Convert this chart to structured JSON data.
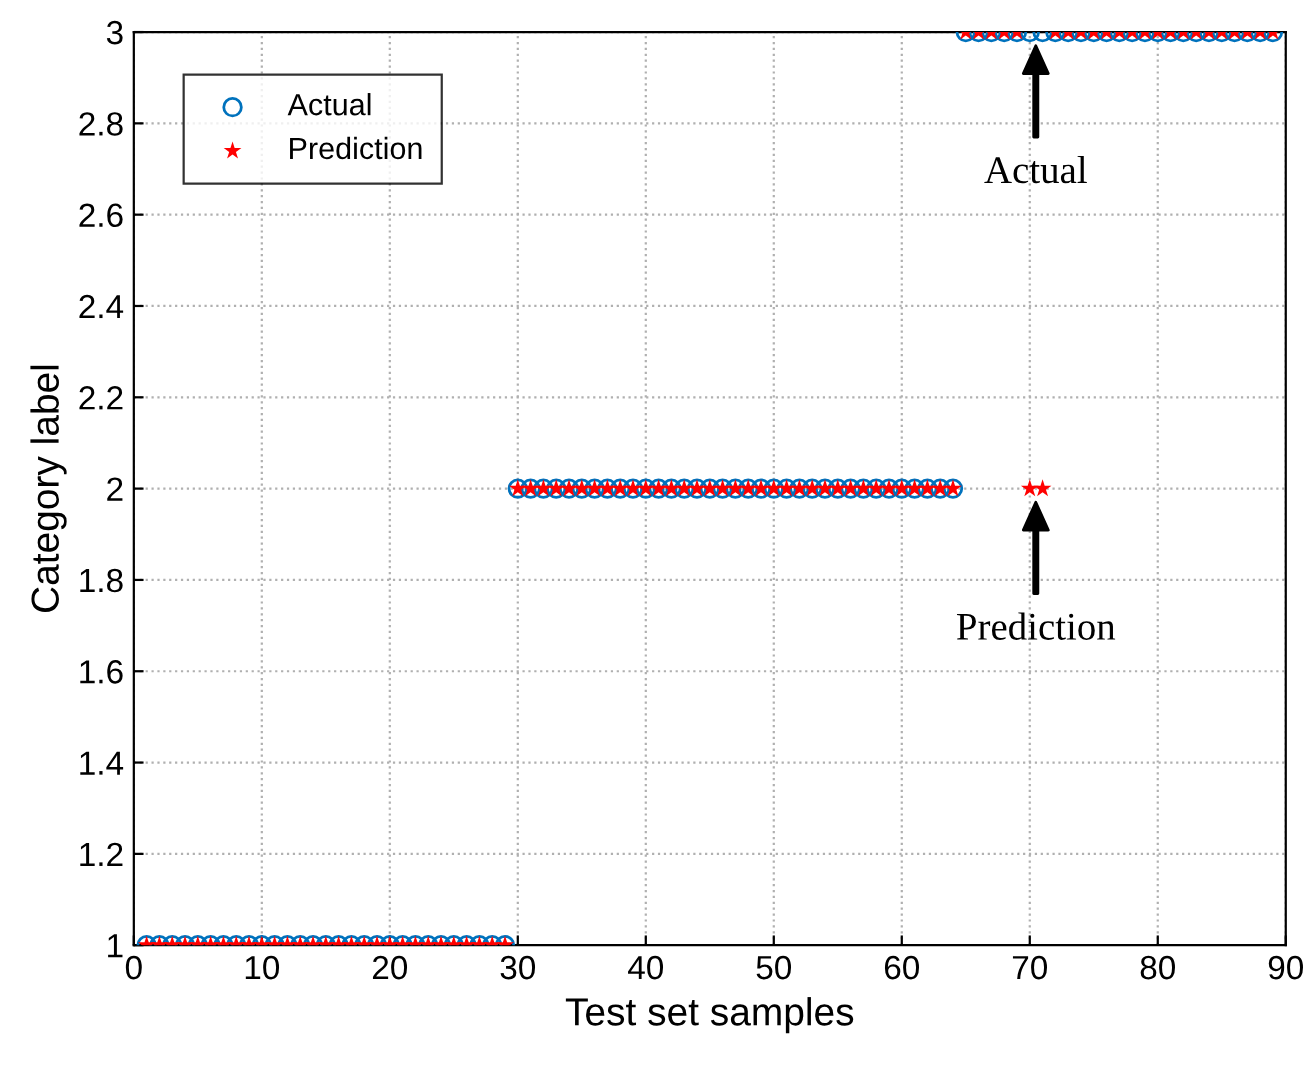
{
  "chart_data": {
    "type": "scatter",
    "xlabel": "Test set samples",
    "ylabel": "Category label",
    "x": [
      1,
      2,
      3,
      4,
      5,
      6,
      7,
      8,
      9,
      10,
      11,
      12,
      13,
      14,
      15,
      16,
      17,
      18,
      19,
      20,
      21,
      22,
      23,
      24,
      25,
      26,
      27,
      28,
      29,
      30,
      31,
      32,
      33,
      34,
      35,
      36,
      37,
      38,
      39,
      40,
      41,
      42,
      43,
      44,
      45,
      46,
      47,
      48,
      49,
      50,
      51,
      52,
      53,
      54,
      55,
      56,
      57,
      58,
      59,
      60,
      61,
      62,
      63,
      64,
      65,
      66,
      67,
      68,
      69,
      70,
      71,
      72,
      73,
      74,
      75,
      76,
      77,
      78,
      79,
      80,
      81,
      82,
      83,
      84,
      85,
      86,
      87,
      88,
      89
    ],
    "series": [
      {
        "name": "Actual",
        "color": "#0072bd",
        "marker": "circle",
        "values": [
          1,
          1,
          1,
          1,
          1,
          1,
          1,
          1,
          1,
          1,
          1,
          1,
          1,
          1,
          1,
          1,
          1,
          1,
          1,
          1,
          1,
          1,
          1,
          1,
          1,
          1,
          1,
          1,
          1,
          2,
          2,
          2,
          2,
          2,
          2,
          2,
          2,
          2,
          2,
          2,
          2,
          2,
          2,
          2,
          2,
          2,
          2,
          2,
          2,
          2,
          2,
          2,
          2,
          2,
          2,
          2,
          2,
          2,
          2,
          2,
          2,
          2,
          2,
          2,
          3,
          3,
          3,
          3,
          3,
          3,
          3,
          3,
          3,
          3,
          3,
          3,
          3,
          3,
          3,
          3,
          3,
          3,
          3,
          3,
          3,
          3,
          3,
          3,
          3
        ]
      },
      {
        "name": "Prediction",
        "color": "#ff0000",
        "marker": "star",
        "values": [
          1,
          1,
          1,
          1,
          1,
          1,
          1,
          1,
          1,
          1,
          1,
          1,
          1,
          1,
          1,
          1,
          1,
          1,
          1,
          1,
          1,
          1,
          1,
          1,
          1,
          1,
          1,
          1,
          1,
          2,
          2,
          2,
          2,
          2,
          2,
          2,
          2,
          2,
          2,
          2,
          2,
          2,
          2,
          2,
          2,
          2,
          2,
          2,
          2,
          2,
          2,
          2,
          2,
          2,
          2,
          2,
          2,
          2,
          2,
          2,
          2,
          2,
          2,
          2,
          3,
          3,
          3,
          3,
          3,
          2,
          2,
          3,
          3,
          3,
          3,
          3,
          3,
          3,
          3,
          3,
          3,
          3,
          3,
          3,
          3,
          3,
          3,
          3,
          3
        ]
      }
    ],
    "xlim": [
      0,
      90
    ],
    "xticks": [
      0,
      10,
      20,
      30,
      40,
      50,
      60,
      70,
      80,
      90
    ],
    "ylim": [
      1,
      3
    ],
    "yticks": [
      1,
      1.2,
      1.4,
      1.6,
      1.8,
      2,
      2.2,
      2.4,
      2.6,
      2.8,
      3
    ],
    "grid": true,
    "legend": "top left",
    "annotations": [
      "Actual",
      "Prediction"
    ]
  }
}
